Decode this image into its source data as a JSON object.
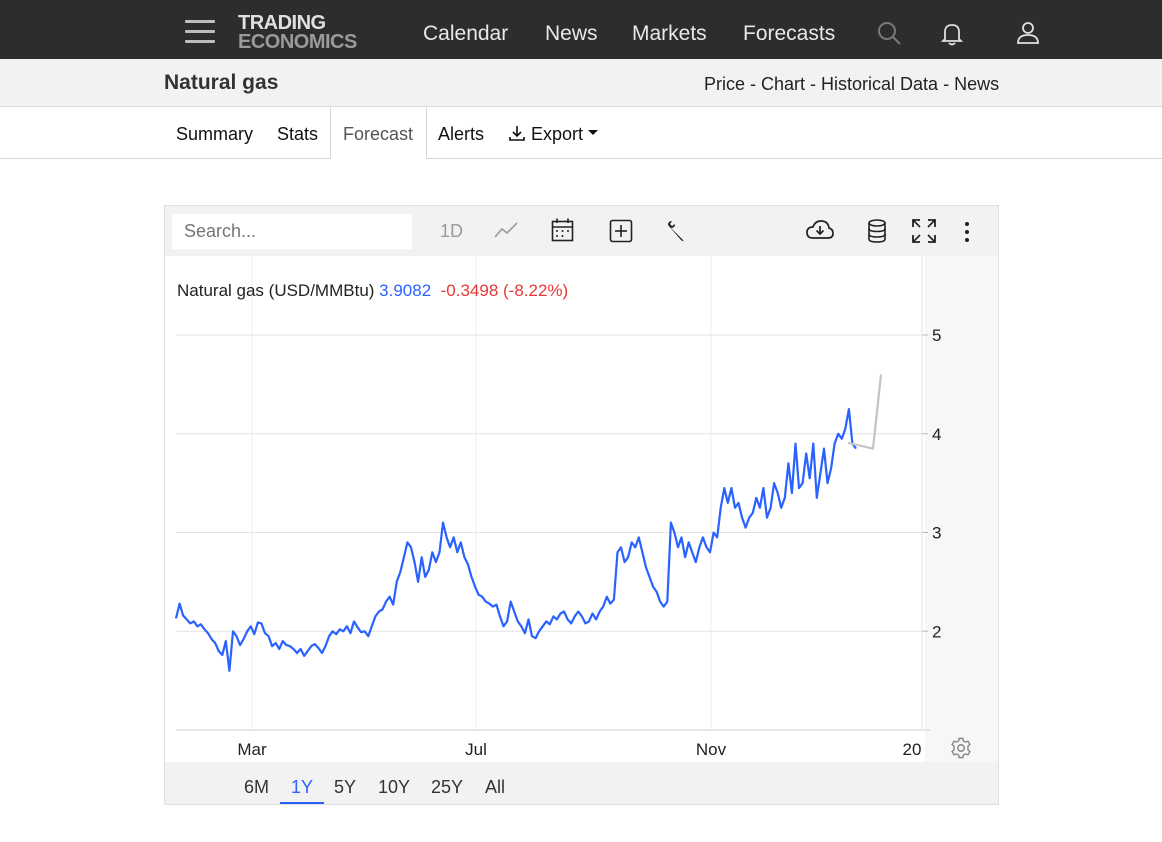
{
  "header": {
    "logo_line1": "TRADING",
    "logo_line2": "ECONOMICS",
    "nav": [
      "Calendar",
      "News",
      "Markets",
      "Forecasts"
    ],
    "icons": [
      "menu-icon",
      "search-icon",
      "bell-icon",
      "user-icon"
    ]
  },
  "subheader": {
    "title": "Natural gas",
    "links": [
      "Price",
      "Chart",
      "Historical Data",
      "News"
    ],
    "separator": " - "
  },
  "tabs": {
    "summary": "Summary",
    "stats": "Stats",
    "forecast": "Forecast",
    "alerts": "Alerts",
    "export": "Export",
    "active": "Forecast"
  },
  "toolbar": {
    "search_placeholder": "Search...",
    "interval": "1D",
    "icons": [
      "line-chart-icon",
      "calendar-icon",
      "add-icon",
      "wrench-icon",
      "cloud-download-icon",
      "database-icon",
      "fullscreen-icon",
      "more-icon"
    ]
  },
  "ranges": {
    "buttons": [
      "6M",
      "1Y",
      "5Y",
      "10Y",
      "25Y",
      "All"
    ],
    "active": "1Y"
  },
  "legend": {
    "name": "Natural gas (USD/MMBtu)",
    "value": "3.9082",
    "change": "-0.3498 (-8.22%)"
  },
  "colors": {
    "series": "#2962ff",
    "forecast": "#c4c4c4",
    "negative": "#e53935",
    "topbar": "#2d2d2d"
  },
  "chart_data": {
    "type": "line",
    "title": "",
    "xlabel": "",
    "ylabel": "",
    "x_ticks": [
      "Mar",
      "Jul",
      "Nov",
      "20"
    ],
    "y_ticks": [
      2,
      3,
      4,
      5
    ],
    "ylim": [
      1.0,
      5.8
    ],
    "y_axis_position": "right",
    "grid": true,
    "series": [
      {
        "role": "historical",
        "values": [
          2.13,
          2.28,
          2.16,
          2.12,
          2.08,
          2.1,
          2.05,
          2.07,
          2.02,
          1.98,
          1.92,
          1.88,
          1.8,
          1.76,
          1.9,
          1.6,
          2.0,
          1.95,
          1.86,
          1.92,
          2.0,
          2.05,
          1.97,
          2.09,
          2.08,
          1.98,
          1.95,
          1.85,
          1.88,
          1.82,
          1.9,
          1.86,
          1.85,
          1.82,
          1.78,
          1.82,
          1.75,
          1.8,
          1.85,
          1.87,
          1.83,
          1.78,
          1.85,
          1.95,
          2.0,
          1.97,
          2.02,
          2.0,
          2.05,
          1.98,
          2.1,
          2.04,
          1.99,
          2.0,
          1.95,
          2.05,
          2.15,
          2.2,
          2.22,
          2.3,
          2.35,
          2.27,
          2.5,
          2.6,
          2.75,
          2.9,
          2.85,
          2.7,
          2.5,
          2.75,
          2.55,
          2.62,
          2.8,
          2.7,
          2.8,
          3.1,
          2.95,
          2.85,
          2.95,
          2.8,
          2.9,
          2.75,
          2.68,
          2.55,
          2.45,
          2.37,
          2.35,
          2.3,
          2.28,
          2.25,
          2.27,
          2.15,
          2.05,
          2.1,
          2.3,
          2.2,
          2.1,
          2.05,
          1.98,
          2.12,
          1.95,
          1.93,
          2.0,
          2.05,
          2.1,
          2.07,
          2.15,
          2.12,
          2.18,
          2.2,
          2.12,
          2.08,
          2.15,
          2.2,
          2.15,
          2.08,
          2.1,
          2.18,
          2.12,
          2.2,
          2.25,
          2.35,
          2.28,
          2.32,
          2.8,
          2.85,
          2.7,
          2.75,
          2.9,
          2.85,
          2.95,
          2.8,
          2.65,
          2.55,
          2.45,
          2.4,
          2.3,
          2.25,
          2.3,
          3.1,
          3.0,
          2.85,
          2.95,
          2.75,
          2.9,
          2.8,
          2.7,
          2.85,
          2.95,
          2.85,
          2.8,
          3.0,
          2.95,
          3.25,
          3.45,
          3.3,
          3.45,
          3.25,
          3.3,
          3.15,
          3.05,
          3.15,
          3.2,
          3.35,
          3.25,
          3.45,
          3.15,
          3.25,
          3.5,
          3.4,
          3.25,
          3.35,
          3.7,
          3.4,
          3.9,
          3.45,
          3.5,
          3.8,
          3.55,
          3.9,
          3.35,
          3.6,
          3.85,
          3.5,
          3.65,
          3.9,
          4.0,
          3.95,
          4.05,
          4.25,
          3.9,
          3.85
        ]
      },
      {
        "role": "forecast",
        "values": [
          3.9082,
          3.85,
          4.6
        ]
      }
    ]
  }
}
